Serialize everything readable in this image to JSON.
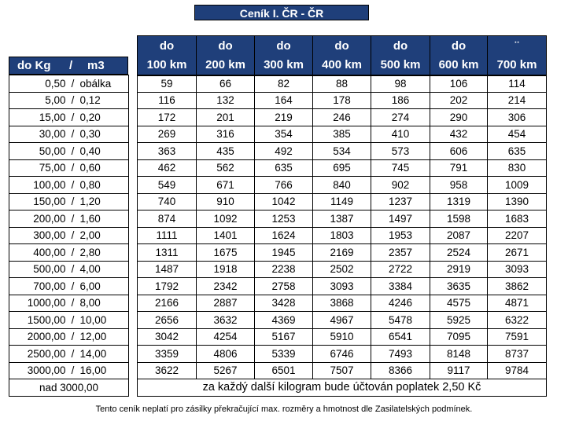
{
  "title": "Ceník I. ČR - ČR",
  "left_header": {
    "kg": "do Kg",
    "slash": "/",
    "m3": "m3"
  },
  "columns": [
    {
      "top": "do",
      "bottom": "100 km"
    },
    {
      "top": "do",
      "bottom": "200 km"
    },
    {
      "top": "do",
      "bottom": "300 km"
    },
    {
      "top": "do",
      "bottom": "400 km"
    },
    {
      "top": "do",
      "bottom": "500 km"
    },
    {
      "top": "do",
      "bottom": "600 km"
    },
    {
      "top": "¨",
      "bottom": "700 km"
    }
  ],
  "rows": [
    {
      "weight": "0,50",
      "volume": "obálka",
      "prices": [
        "59",
        "66",
        "82",
        "88",
        "98",
        "106",
        "114"
      ]
    },
    {
      "weight": "5,00",
      "volume": "0,12",
      "prices": [
        "116",
        "132",
        "164",
        "178",
        "186",
        "202",
        "214"
      ]
    },
    {
      "weight": "15,00",
      "volume": "0,20",
      "prices": [
        "172",
        "201",
        "219",
        "246",
        "274",
        "290",
        "306"
      ]
    },
    {
      "weight": "30,00",
      "volume": "0,30",
      "prices": [
        "269",
        "316",
        "354",
        "385",
        "410",
        "432",
        "454"
      ]
    },
    {
      "weight": "50,00",
      "volume": "0,40",
      "prices": [
        "363",
        "435",
        "492",
        "534",
        "573",
        "606",
        "635"
      ]
    },
    {
      "weight": "75,00",
      "volume": "0,60",
      "prices": [
        "462",
        "562",
        "635",
        "695",
        "745",
        "791",
        "830"
      ]
    },
    {
      "weight": "100,00",
      "volume": "0,80",
      "prices": [
        "549",
        "671",
        "766",
        "840",
        "902",
        "958",
        "1009"
      ]
    },
    {
      "weight": "150,00",
      "volume": "1,20",
      "prices": [
        "740",
        "910",
        "1042",
        "1149",
        "1237",
        "1319",
        "1390"
      ]
    },
    {
      "weight": "200,00",
      "volume": "1,60",
      "prices": [
        "874",
        "1092",
        "1253",
        "1387",
        "1497",
        "1598",
        "1683"
      ]
    },
    {
      "weight": "300,00",
      "volume": "2,00",
      "prices": [
        "1111",
        "1401",
        "1624",
        "1803",
        "1953",
        "2087",
        "2207"
      ]
    },
    {
      "weight": "400,00",
      "volume": "2,80",
      "prices": [
        "1311",
        "1675",
        "1945",
        "2169",
        "2357",
        "2524",
        "2671"
      ]
    },
    {
      "weight": "500,00",
      "volume": "4,00",
      "prices": [
        "1487",
        "1918",
        "2238",
        "2502",
        "2722",
        "2919",
        "3093"
      ]
    },
    {
      "weight": "700,00",
      "volume": "6,00",
      "prices": [
        "1792",
        "2342",
        "2758",
        "3093",
        "3384",
        "3635",
        "3862"
      ]
    },
    {
      "weight": "1000,00",
      "volume": "8,00",
      "prices": [
        "2166",
        "2887",
        "3428",
        "3868",
        "4246",
        "4575",
        "4871"
      ]
    },
    {
      "weight": "1500,00",
      "volume": "10,00",
      "prices": [
        "2656",
        "3632",
        "4369",
        "4967",
        "5478",
        "5925",
        "6322"
      ]
    },
    {
      "weight": "2000,00",
      "volume": "12,00",
      "prices": [
        "3042",
        "4254",
        "5167",
        "5910",
        "6541",
        "7095",
        "7591"
      ]
    },
    {
      "weight": "2500,00",
      "volume": "14,00",
      "prices": [
        "3359",
        "4806",
        "5339",
        "6746",
        "7493",
        "8148",
        "8737"
      ]
    },
    {
      "weight": "3000,00",
      "volume": "16,00",
      "prices": [
        "3622",
        "5267",
        "6501",
        "7507",
        "8366",
        "9117",
        "9784"
      ]
    }
  ],
  "last_row": {
    "label": "nad 3000,00",
    "note": "za každý další kilogram bude účtován poplatek 2,50 Kč"
  },
  "footer": "Tento ceník neplatí pro zásilky překračující max. rozměry a hmotnost dle Zasilatelských podmínek."
}
